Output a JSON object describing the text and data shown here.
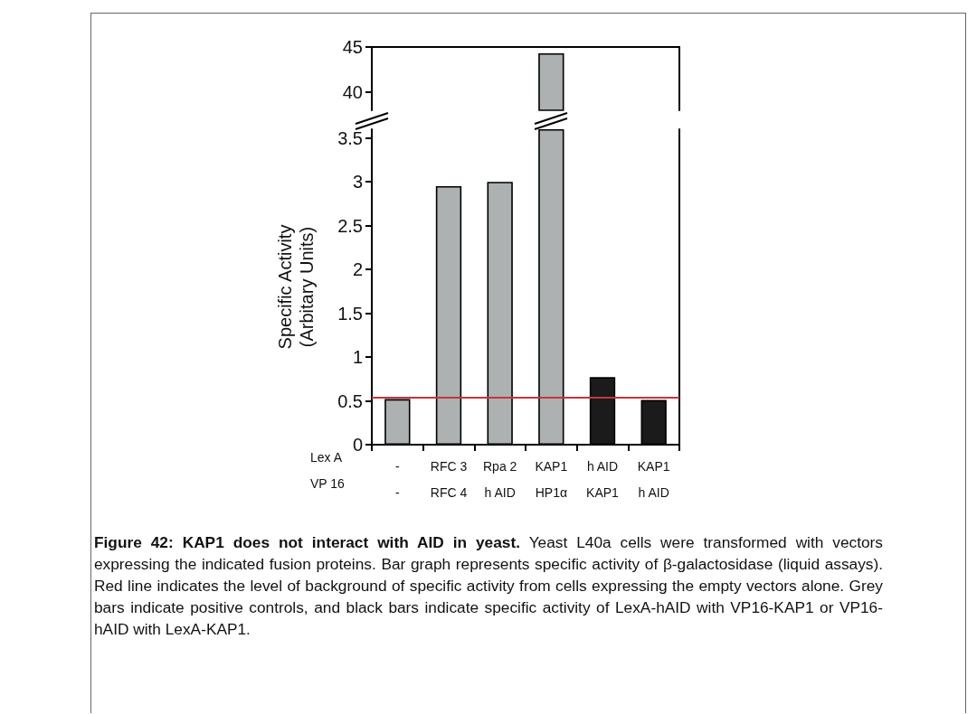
{
  "chart_data": [
    {
      "type": "bar",
      "categories": [
        null,
        null,
        null,
        null,
        null,
        null
      ],
      "values": [
        null,
        null,
        null,
        44.3,
        null,
        null
      ],
      "colors": [
        "#adb1b1",
        "#adb1b1",
        "#adb1b1",
        "#adb1b1",
        "#1b1b1b",
        "#1b1b1b"
      ],
      "ylim": [
        38,
        45
      ],
      "yticks": [
        40,
        45
      ],
      "tick_labels": "y"
    },
    {
      "type": "bar",
      "categories": [
        "-\n-",
        "RFC 3\nRFC 4",
        "Rpa 2\nh AID",
        "KAP1\nHP1α",
        "h AID\nKAP1",
        "KAP1\nh AID"
      ],
      "values": [
        0.52,
        2.95,
        3.0,
        3.6,
        0.77,
        0.51
      ],
      "colors": [
        "#adb1b1",
        "#adb1b1",
        "#adb1b1",
        "#adb1b1",
        "#1b1b1b",
        "#1b1b1b"
      ],
      "ylim": [
        0,
        3.6
      ],
      "yticks": [
        0,
        0.5,
        1,
        1.5,
        2,
        2.5,
        3,
        3.5
      ],
      "ylabel": "Specific Activity\n(Arbitary Units)",
      "ref_lines": [
        {
          "axis": "y",
          "value": 0.54,
          "color": "#c0393b"
        }
      ],
      "annotations": [
        "Lex A",
        "VP 16",
        "Figure 42: KAP1 does not interact with AID in yeast.",
        "Yeast L40a cells were transformed with vectors expressing the indicated fusion proteins. Bar graph represents specific activity of β-galactosidase (liquid assays). Red line indicates the level of background of specific activity from cells expressing the empty vectors alone. Grey bars indicate positive controls, and black bars indicate specific activity of LexA-hAID with VP16-KAP1 or VP16-hAID with LexA-KAP1."
      ]
    }
  ]
}
